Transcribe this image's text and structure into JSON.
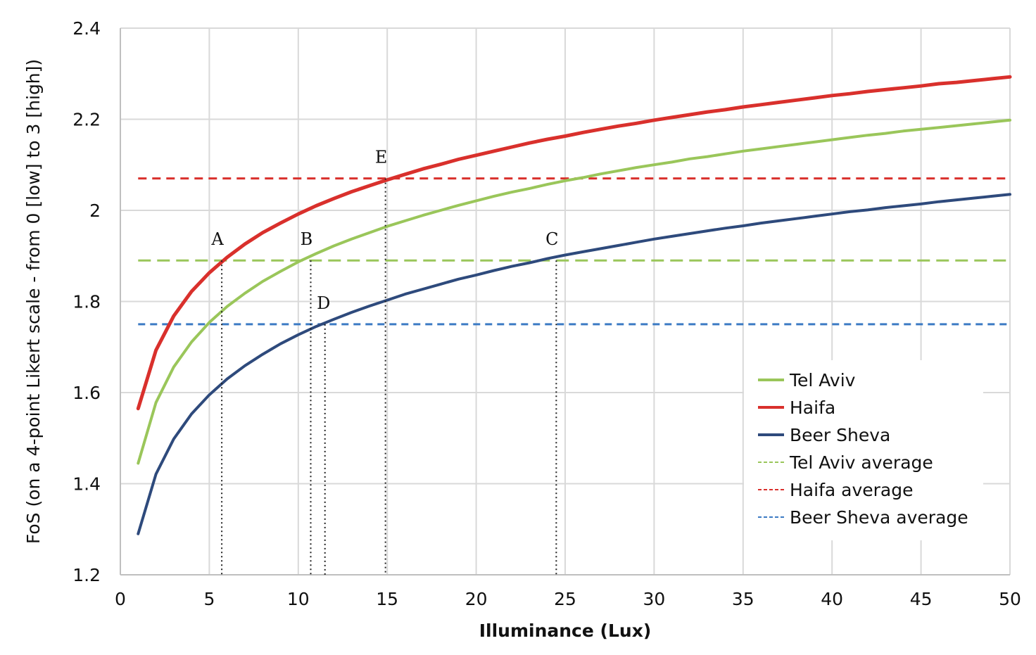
{
  "chart_data": {
    "type": "line",
    "xlabel": "Illuminance (Lux)",
    "ylabel": "FoS (on a 4-point Likert scale - from 0 [low] to 3 [high])",
    "xlim": [
      0,
      50
    ],
    "ylim": [
      1.2,
      2.4
    ],
    "x_ticks": [
      "0",
      "5",
      "10",
      "15",
      "20",
      "25",
      "30",
      "35",
      "40",
      "45",
      "50"
    ],
    "y_ticks": [
      "1.2",
      "1.4",
      "1.6",
      "1.8",
      "2",
      "2.2",
      "2.4"
    ],
    "grid": true,
    "legend_position": "bottom-right",
    "x": [
      1,
      2,
      3,
      4,
      5,
      6,
      7,
      8,
      9,
      10,
      11,
      12,
      13,
      14,
      15,
      16,
      17,
      18,
      19,
      20,
      21,
      22,
      23,
      24,
      25,
      26,
      27,
      28,
      29,
      30,
      31,
      32,
      33,
      34,
      35,
      36,
      37,
      38,
      39,
      40,
      41,
      42,
      43,
      44,
      45,
      46,
      47,
      48,
      49,
      50
    ],
    "series": [
      {
        "name": "Tel Aviv",
        "color": "#9ac65a",
        "style": "solid",
        "values": [
          1.445,
          1.578,
          1.656,
          1.711,
          1.754,
          1.789,
          1.818,
          1.844,
          1.866,
          1.887,
          1.905,
          1.922,
          1.937,
          1.951,
          1.965,
          1.977,
          1.989,
          2.0,
          2.011,
          2.021,
          2.031,
          2.04,
          2.048,
          2.057,
          2.065,
          2.072,
          2.08,
          2.087,
          2.094,
          2.1,
          2.106,
          2.113,
          2.118,
          2.124,
          2.13,
          2.135,
          2.14,
          2.145,
          2.15,
          2.155,
          2.16,
          2.165,
          2.169,
          2.174,
          2.178,
          2.182,
          2.186,
          2.19,
          2.194,
          2.198
        ]
      },
      {
        "name": "Haifa",
        "color": "#d9302c",
        "style": "solid",
        "values": [
          1.565,
          1.693,
          1.768,
          1.822,
          1.863,
          1.897,
          1.926,
          1.951,
          1.972,
          1.992,
          2.01,
          2.026,
          2.041,
          2.054,
          2.067,
          2.079,
          2.091,
          2.101,
          2.112,
          2.121,
          2.13,
          2.139,
          2.148,
          2.156,
          2.163,
          2.171,
          2.178,
          2.185,
          2.191,
          2.198,
          2.204,
          2.21,
          2.216,
          2.221,
          2.227,
          2.232,
          2.237,
          2.242,
          2.247,
          2.252,
          2.256,
          2.261,
          2.265,
          2.269,
          2.273,
          2.278,
          2.281,
          2.285,
          2.289,
          2.293
        ]
      },
      {
        "name": "Beer Sheva",
        "color": "#2e4a7c",
        "style": "solid",
        "values": [
          1.29,
          1.421,
          1.498,
          1.553,
          1.595,
          1.63,
          1.659,
          1.684,
          1.707,
          1.727,
          1.745,
          1.761,
          1.776,
          1.79,
          1.803,
          1.816,
          1.827,
          1.838,
          1.849,
          1.858,
          1.868,
          1.877,
          1.885,
          1.894,
          1.902,
          1.909,
          1.916,
          1.923,
          1.93,
          1.937,
          1.943,
          1.949,
          1.955,
          1.961,
          1.966,
          1.972,
          1.977,
          1.982,
          1.987,
          1.992,
          1.997,
          2.001,
          2.006,
          2.01,
          2.014,
          2.019,
          2.023,
          2.027,
          2.031,
          2.035
        ]
      },
      {
        "name": "Tel Aviv average",
        "color": "#9ac65a",
        "style": "dashed",
        "value": 1.89
      },
      {
        "name": "Haifa average",
        "color": "#d9302c",
        "style": "dashed",
        "value": 2.07
      },
      {
        "name": "Beer Sheva average",
        "color": "#3c7bc4",
        "style": "dashed",
        "value": 1.75
      }
    ],
    "annotations": [
      {
        "label": "A",
        "x": 5.7,
        "y": 1.89
      },
      {
        "label": "B",
        "x": 10.7,
        "y": 1.89
      },
      {
        "label": "C",
        "x": 24.5,
        "y": 1.89
      },
      {
        "label": "D",
        "x": 11.5,
        "y": 1.75
      },
      {
        "label": "E",
        "x": 14.9,
        "y": 2.07
      }
    ]
  }
}
